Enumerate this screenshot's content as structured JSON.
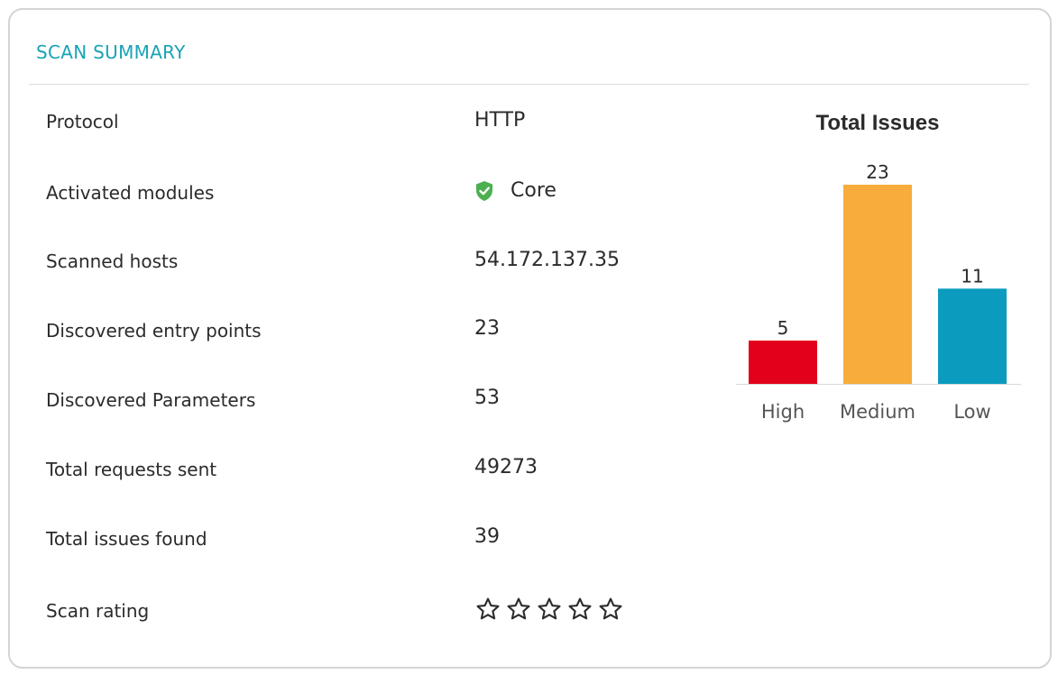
{
  "card": {
    "title": "SCAN SUMMARY"
  },
  "rows": [
    {
      "label": "Protocol",
      "value": "HTTP"
    },
    {
      "label": "Activated modules",
      "value": "Core",
      "icon": "shield-check-icon"
    },
    {
      "label": "Scanned hosts",
      "value": "54.172.137.35"
    },
    {
      "label": "Discovered entry points",
      "value": "23"
    },
    {
      "label": "Discovered Parameters",
      "value": "53"
    },
    {
      "label": "Total requests sent",
      "value": "49273"
    },
    {
      "label": "Total issues found",
      "value": "39"
    },
    {
      "label": "Scan rating",
      "rating": 0,
      "rating_max": 5,
      "icon": "star-outline-icon"
    }
  ],
  "colors": {
    "accent": "#1aa3b5",
    "shield": "#4caf50",
    "high": "#e2001a",
    "medium": "#f7ac3b",
    "low": "#0b9bbe"
  },
  "chart_data": {
    "type": "bar",
    "title": "Total Issues",
    "categories": [
      "High",
      "Medium",
      "Low"
    ],
    "values": [
      5,
      23,
      11
    ],
    "data_labels": [
      "5",
      "23",
      "11"
    ],
    "colors": [
      "#e2001a",
      "#f7ac3b",
      "#0b9bbe"
    ],
    "ylim": [
      0,
      23
    ],
    "grid": false,
    "xlabel": "",
    "ylabel": ""
  }
}
